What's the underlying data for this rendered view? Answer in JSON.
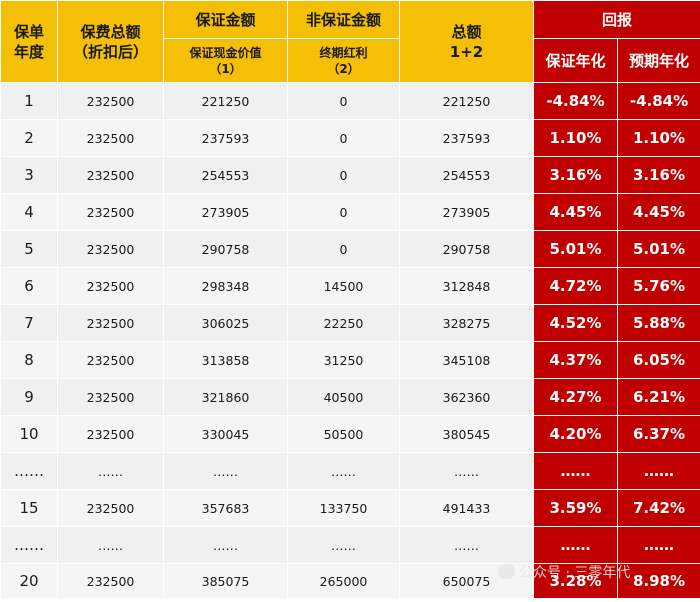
{
  "headers": {
    "year": "保单\n年度",
    "premium": "保费总额\n（折扣后）",
    "guaranteed": "保证金额",
    "guaranteed_sub": "保证现金价值\n（1）",
    "non_guaranteed": "非保证金额",
    "non_guaranteed_sub": "终期红利\n（2）",
    "total": "总额\n1+2",
    "returns": "回报",
    "returns_guaranteed": "保证年化",
    "returns_expected": "预期年化"
  },
  "rows": [
    {
      "year": "1",
      "premium": "232500",
      "cash_value": "221250",
      "bonus": "0",
      "total": "221250",
      "g_rate": "-4.84%",
      "e_rate": "-4.84%"
    },
    {
      "year": "2",
      "premium": "232500",
      "cash_value": "237593",
      "bonus": "0",
      "total": "237593",
      "g_rate": "1.10%",
      "e_rate": "1.10%"
    },
    {
      "year": "3",
      "premium": "232500",
      "cash_value": "254553",
      "bonus": "0",
      "total": "254553",
      "g_rate": "3.16%",
      "e_rate": "3.16%"
    },
    {
      "year": "4",
      "premium": "232500",
      "cash_value": "273905",
      "bonus": "0",
      "total": "273905",
      "g_rate": "4.45%",
      "e_rate": "4.45%"
    },
    {
      "year": "5",
      "premium": "232500",
      "cash_value": "290758",
      "bonus": "0",
      "total": "290758",
      "g_rate": "5.01%",
      "e_rate": "5.01%"
    },
    {
      "year": "6",
      "premium": "232500",
      "cash_value": "298348",
      "bonus": "14500",
      "total": "312848",
      "g_rate": "4.72%",
      "e_rate": "5.76%"
    },
    {
      "year": "7",
      "premium": "232500",
      "cash_value": "306025",
      "bonus": "22250",
      "total": "328275",
      "g_rate": "4.52%",
      "e_rate": "5.88%"
    },
    {
      "year": "8",
      "premium": "232500",
      "cash_value": "313858",
      "bonus": "31250",
      "total": "345108",
      "g_rate": "4.37%",
      "e_rate": "6.05%"
    },
    {
      "year": "9",
      "premium": "232500",
      "cash_value": "321860",
      "bonus": "40500",
      "total": "362360",
      "g_rate": "4.27%",
      "e_rate": "6.21%"
    },
    {
      "year": "10",
      "premium": "232500",
      "cash_value": "330045",
      "bonus": "50500",
      "total": "380545",
      "g_rate": "4.20%",
      "e_rate": "6.37%"
    },
    {
      "year": "……",
      "premium": "……",
      "cash_value": "……",
      "bonus": "……",
      "total": "……",
      "g_rate": "……",
      "e_rate": "……"
    },
    {
      "year": "15",
      "premium": "232500",
      "cash_value": "357683",
      "bonus": "133750",
      "total": "491433",
      "g_rate": "3.59%",
      "e_rate": "7.42%"
    },
    {
      "year": "……",
      "premium": "……",
      "cash_value": "……",
      "bonus": "……",
      "total": "……",
      "g_rate": "……",
      "e_rate": "……"
    },
    {
      "year": "20",
      "premium": "232500",
      "cash_value": "385075",
      "bonus": "265000",
      "total": "650075",
      "g_rate": "3.28%",
      "e_rate": "8.98%"
    }
  ],
  "watermark": "公众号 · 三零年代",
  "colors": {
    "header_yellow": "#f5bf05",
    "returns_red": "#c00000",
    "row_gray": "#f0f0f0"
  }
}
